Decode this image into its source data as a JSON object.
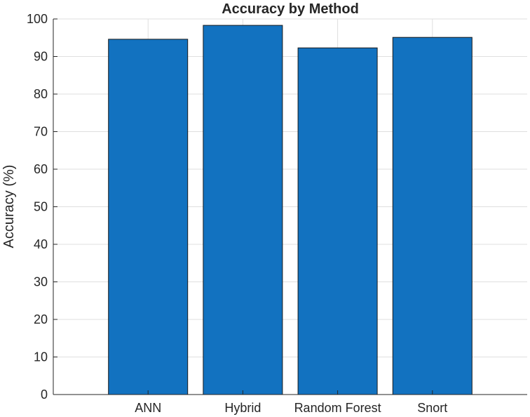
{
  "chart_data": {
    "type": "bar",
    "title": "Accuracy by Method",
    "xlabel": "",
    "ylabel": "Accuracy (%)",
    "categories": [
      "ANN",
      "Hybrid",
      "Random Forest",
      "Snort"
    ],
    "values": [
      94.6,
      98.3,
      92.3,
      95.1
    ],
    "ylim": [
      0,
      100
    ],
    "yticks": [
      0,
      10,
      20,
      30,
      40,
      50,
      60,
      70,
      80,
      90,
      100
    ],
    "grid": true,
    "legend": "none",
    "bar_color": "#1272c0"
  }
}
